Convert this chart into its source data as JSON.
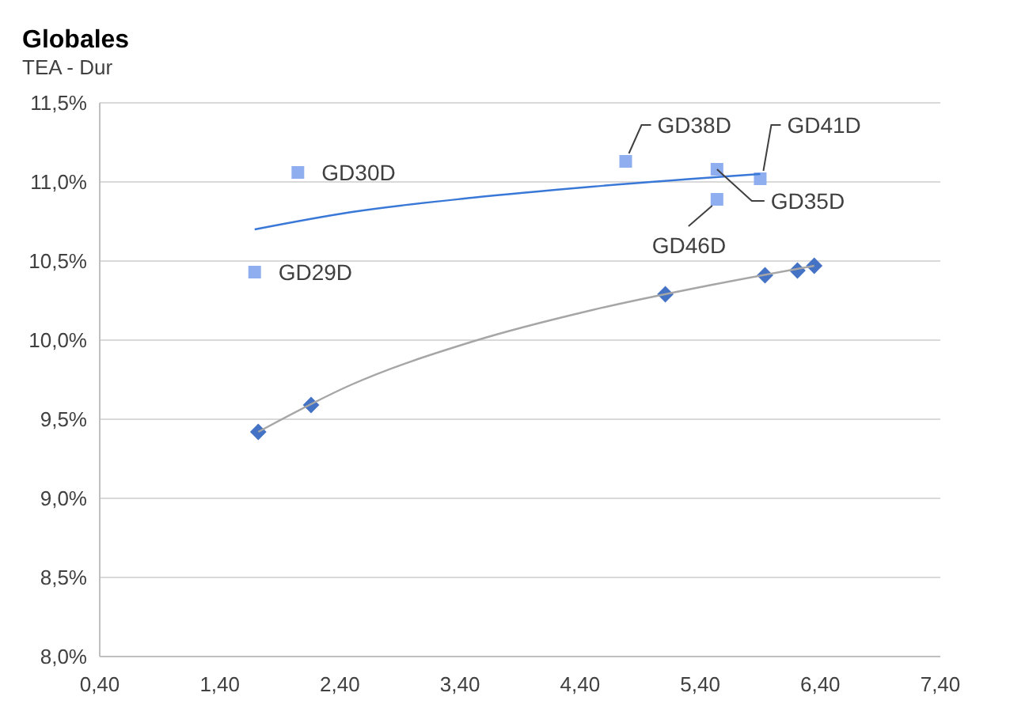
{
  "chart_data": {
    "type": "scatter",
    "title": "Globales",
    "subtitle": "TEA - Dur",
    "xlim": [
      0.4,
      7.4
    ],
    "xticks": [
      {
        "value": 0.4,
        "label": "0,40"
      },
      {
        "value": 1.4,
        "label": "1,40"
      },
      {
        "value": 2.4,
        "label": "2,40"
      },
      {
        "value": 3.4,
        "label": "3,40"
      },
      {
        "value": 4.4,
        "label": "4,40"
      },
      {
        "value": 5.4,
        "label": "5,40"
      },
      {
        "value": 6.4,
        "label": "6,40"
      },
      {
        "value": 7.4,
        "label": "7,40"
      }
    ],
    "ylim": [
      8.0,
      11.5
    ],
    "yticks": [
      {
        "value": 8.0,
        "label": "8,0%"
      },
      {
        "value": 8.5,
        "label": "8,5%"
      },
      {
        "value": 9.0,
        "label": "9,0%"
      },
      {
        "value": 9.5,
        "label": "9,5%"
      },
      {
        "value": 10.0,
        "label": "10,0%"
      },
      {
        "value": 10.5,
        "label": "10,5%"
      },
      {
        "value": 11.0,
        "label": "11,0%"
      },
      {
        "value": 11.5,
        "label": "11,5%"
      }
    ],
    "grid": "y",
    "series": [
      {
        "marker": "square",
        "color": "#8eaef0",
        "x": [
          1.69,
          2.05,
          4.78,
          5.54,
          5.9,
          5.54
        ],
        "values": [
          10.43,
          11.06,
          11.13,
          11.08,
          11.02,
          10.89
        ]
      },
      {
        "marker": "diamond",
        "color": "#4472c4",
        "x": [
          1.72,
          2.16,
          5.11,
          5.94,
          6.21,
          6.35
        ],
        "values": [
          9.42,
          9.59,
          10.29,
          10.41,
          10.44,
          10.47
        ]
      },
      {
        "type": "line",
        "marker": "none",
        "line_style": "solid",
        "color": "#3a78d8",
        "x": [
          1.69,
          2.5,
          3.5,
          4.5,
          5.9
        ],
        "values": [
          10.7,
          10.81,
          10.9,
          10.97,
          11.05
        ]
      },
      {
        "type": "line",
        "marker": "none",
        "line_style": "solid",
        "color": "#a6a6a6",
        "x": [
          1.72,
          2.5,
          3.5,
          4.5,
          5.5,
          6.35
        ],
        "values": [
          9.42,
          9.72,
          9.99,
          10.19,
          10.35,
          10.47
        ]
      }
    ],
    "annotations": [
      {
        "text": "GD29D",
        "x": 1.69,
        "y": 10.43
      },
      {
        "text": "GD30D",
        "x": 2.05,
        "y": 11.06
      },
      {
        "text": "GD38D",
        "x": 4.78,
        "y": 11.13
      },
      {
        "text": "GD35D",
        "x": 5.54,
        "y": 11.08
      },
      {
        "text": "GD41D",
        "x": 5.9,
        "y": 11.02
      },
      {
        "text": "GD46D",
        "x": 5.54,
        "y": 10.89
      }
    ]
  }
}
